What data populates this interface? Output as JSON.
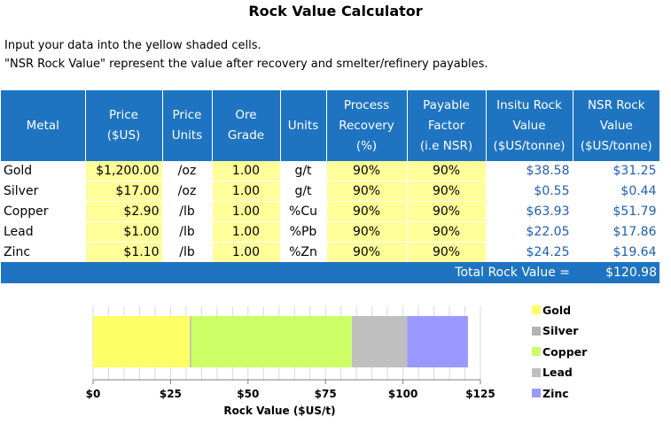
{
  "title": "Rock Value Calculator",
  "instructions": [
    "Input your data into the yellow shaded cells.",
    "\"NSR Rock Value\" represent the value after recovery and smelter/refinery payables."
  ],
  "table": {
    "headers": {
      "metal": "Metal",
      "price": [
        "Price",
        "($US)"
      ],
      "price_units": [
        "Price",
        "Units"
      ],
      "ore_grade": [
        "Ore",
        "Grade"
      ],
      "units": "Units",
      "recovery": [
        "Process",
        "Recovery",
        "(%)"
      ],
      "payable": [
        "Payable",
        "Factor",
        "(i.e NSR)"
      ],
      "insitu": [
        "Insitu Rock",
        "Value",
        "($US/tonne)"
      ],
      "nsr": [
        "NSR Rock",
        "Value",
        "($US/tonne)"
      ]
    },
    "rows": [
      {
        "metal": "Gold",
        "price": "$1,200.00",
        "price_units": "/oz",
        "grade": "1.00",
        "units": "g/t",
        "recovery": "90%",
        "payable": "90%",
        "insitu": "$38.58",
        "nsr": "$31.25"
      },
      {
        "metal": "Silver",
        "price": "$17.00",
        "price_units": "/oz",
        "grade": "1.00",
        "units": "g/t",
        "recovery": "90%",
        "payable": "90%",
        "insitu": "$0.55",
        "nsr": "$0.44"
      },
      {
        "metal": "Copper",
        "price": "$2.90",
        "price_units": "/lb",
        "grade": "1.00",
        "units": "%Cu",
        "recovery": "90%",
        "payable": "90%",
        "insitu": "$63.93",
        "nsr": "$51.79"
      },
      {
        "metal": "Lead",
        "price": "$1.00",
        "price_units": "/lb",
        "grade": "1.00",
        "units": "%Pb",
        "recovery": "90%",
        "payable": "90%",
        "insitu": "$22.05",
        "nsr": "$17.86"
      },
      {
        "metal": "Zinc",
        "price": "$1.10",
        "price_units": "/lb",
        "grade": "1.00",
        "units": "%Zn",
        "recovery": "90%",
        "payable": "90%",
        "insitu": "$24.25",
        "nsr": "$19.64"
      }
    ],
    "total_label": "Total Rock Value =",
    "total_value": "$120.98"
  },
  "colors": {
    "header_blue": "#1f74c1",
    "input_yellow": "#ffff99",
    "value_blue": "#1f5fb0"
  },
  "chart_data": {
    "type": "bar",
    "orientation": "horizontal",
    "stacked": true,
    "xlabel": "Rock Value ($US/t)",
    "xlim": [
      0,
      125
    ],
    "xticks": [
      0,
      25,
      50,
      75,
      100,
      125
    ],
    "xtick_labels": [
      "$0",
      "$25",
      "$50",
      "$75",
      "$100",
      "$125"
    ],
    "grid": "vertical",
    "legend_position": "right",
    "series": [
      {
        "name": "Gold",
        "value": 31.25,
        "color": "#ffff66"
      },
      {
        "name": "Silver",
        "value": 0.44,
        "color": "#b3b3b3"
      },
      {
        "name": "Copper",
        "value": 51.79,
        "color": "#ccff66"
      },
      {
        "name": "Lead",
        "value": 17.86,
        "color": "#bfbfbf"
      },
      {
        "name": "Zinc",
        "value": 19.64,
        "color": "#9999ff"
      }
    ]
  }
}
